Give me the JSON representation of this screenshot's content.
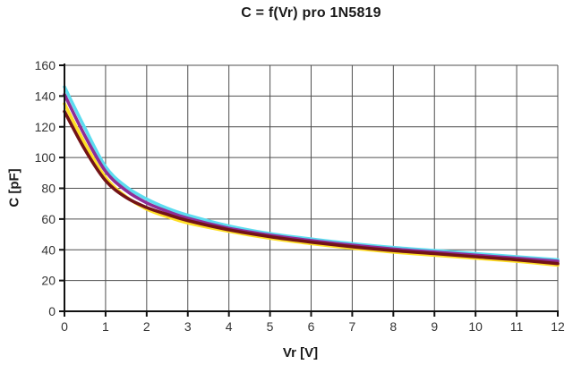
{
  "figure": {
    "title": "C = f(Vr) pro 1N5819"
  },
  "chart_data": {
    "type": "line",
    "title": "C = f(Vr) pro 1N5819",
    "xlabel": "Vr [V]",
    "ylabel": "C [pF]",
    "xlim": [
      0,
      12
    ],
    "ylim": [
      0,
      160
    ],
    "x_ticks": [
      0,
      1,
      2,
      3,
      4,
      5,
      6,
      7,
      8,
      9,
      10,
      11,
      12
    ],
    "y_ticks": [
      0,
      20,
      40,
      60,
      80,
      100,
      120,
      140,
      160
    ],
    "grid": true,
    "legend": "none",
    "background_color": "#ffffff",
    "grid_color": "#4f4f4f",
    "axis_color": "#111111",
    "tick_label_color": "#333333",
    "x": [
      0,
      0.5,
      1,
      1.5,
      2,
      2.5,
      3,
      4,
      5,
      6,
      7,
      8,
      9,
      10,
      11,
      12
    ],
    "series": [
      {
        "name": "curve-1-cyan",
        "color": "#5cdcf0",
        "values": [
          146,
          119,
          94,
          81,
          73,
          67,
          62.5,
          55.5,
          50.5,
          47,
          44,
          41.5,
          39.5,
          37.5,
          35.5,
          33.5
        ]
      },
      {
        "name": "curve-2-purple",
        "color": "#8f2d96",
        "values": [
          141,
          114,
          91,
          78.5,
          70.5,
          65,
          60.5,
          54,
          49.5,
          46,
          43,
          40.5,
          38.5,
          36.5,
          34.5,
          32.5
        ]
      },
      {
        "name": "curve-3-yellow",
        "color": "#ffdf26",
        "values": [
          135,
          109,
          87,
          74.5,
          66.5,
          61.5,
          57.5,
          52,
          47.5,
          44,
          41,
          38.5,
          36.5,
          34.5,
          32.5,
          30
        ]
      },
      {
        "name": "curve-4-maroon",
        "color": "#731317",
        "values": [
          130,
          105,
          85,
          74,
          67.5,
          63,
          59,
          53,
          48.5,
          45,
          42,
          39.5,
          37.5,
          35.5,
          33.5,
          31
        ]
      }
    ]
  }
}
